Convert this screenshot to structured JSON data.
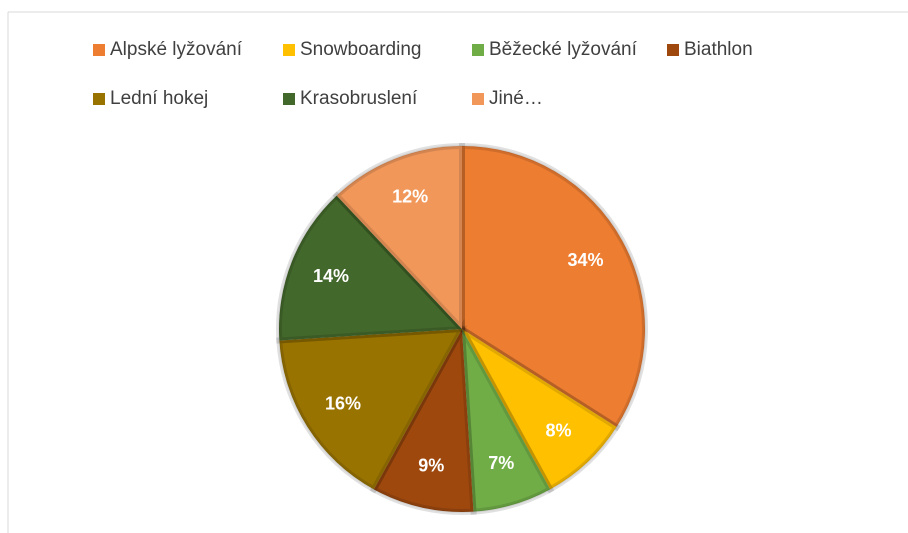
{
  "chart_data": {
    "type": "pie",
    "categories": [
      "Alpské lyžování",
      "Snowboarding",
      "Běžecké lyžování",
      "Biathlon",
      "Lední hokej",
      "Krasobruslení",
      "Jiné…"
    ],
    "values": [
      34,
      8,
      7,
      9,
      16,
      14,
      12
    ],
    "value_labels": [
      "34%",
      "8%",
      "7%",
      "9%",
      "16%",
      "14%",
      "12%"
    ],
    "colors": [
      "#ED7D31",
      "#FFC000",
      "#70AD47",
      "#9E480E",
      "#997300",
      "#43682B",
      "#F1975A"
    ],
    "legend": "top"
  }
}
